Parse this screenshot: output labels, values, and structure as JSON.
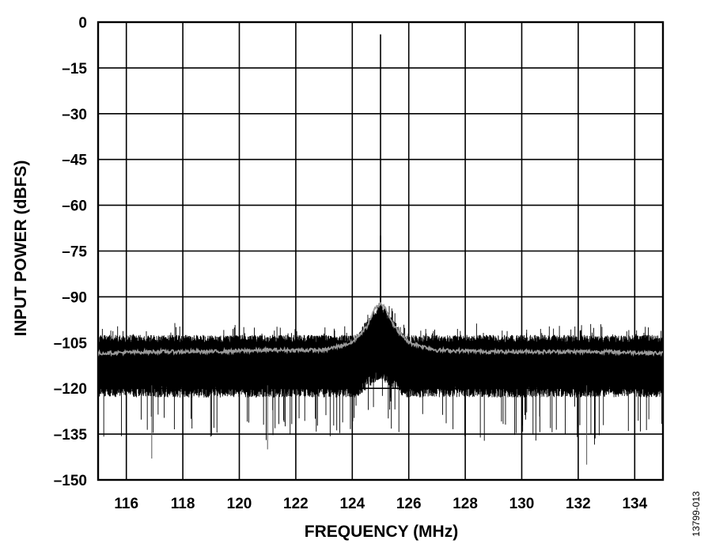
{
  "chart_data": {
    "type": "line",
    "xlabel": "FREQUENCY (MHz)",
    "ylabel": "INPUT POWER (dBFS)",
    "xlim": [
      115,
      135
    ],
    "ylim": [
      -150,
      0
    ],
    "x_ticks": [
      "116",
      "118",
      "120",
      "122",
      "124",
      "126",
      "128",
      "130",
      "132",
      "134"
    ],
    "y_ticks": [
      "0",
      "–15",
      "–30",
      "–45",
      "–60",
      "–75",
      "–90",
      "–105",
      "–120",
      "–135",
      "–150"
    ],
    "grid": true,
    "series": [
      {
        "color": "#000000",
        "noise_floor_dbfs": [
          -119,
          -104
        ],
        "peaks": [
          {
            "x": 125.0,
            "y": -4
          },
          {
            "x": 125.0,
            "y": -70
          }
        ],
        "deep_spikes": [
          {
            "x": 116.9,
            "y": -143
          },
          {
            "x": 121.0,
            "y": -140
          },
          {
            "x": 132.3,
            "y": -145
          }
        ]
      },
      {
        "color": "#999999",
        "points": [
          [
            115,
            -108.5
          ],
          [
            117,
            -108
          ],
          [
            119,
            -108
          ],
          [
            121,
            -107.5
          ],
          [
            123,
            -107.5
          ],
          [
            124,
            -105
          ],
          [
            124.5,
            -100
          ],
          [
            124.8,
            -94
          ],
          [
            125.0,
            -92
          ],
          [
            125.2,
            -94
          ],
          [
            125.5,
            -100
          ],
          [
            126,
            -105
          ],
          [
            127,
            -107.5
          ],
          [
            129,
            -108
          ],
          [
            131,
            -108
          ],
          [
            133,
            -108
          ],
          [
            135,
            -108.5
          ]
        ]
      }
    ],
    "figure_id": "13799-013"
  },
  "colors": {
    "grid": "#000000",
    "background": "#ffffff"
  }
}
